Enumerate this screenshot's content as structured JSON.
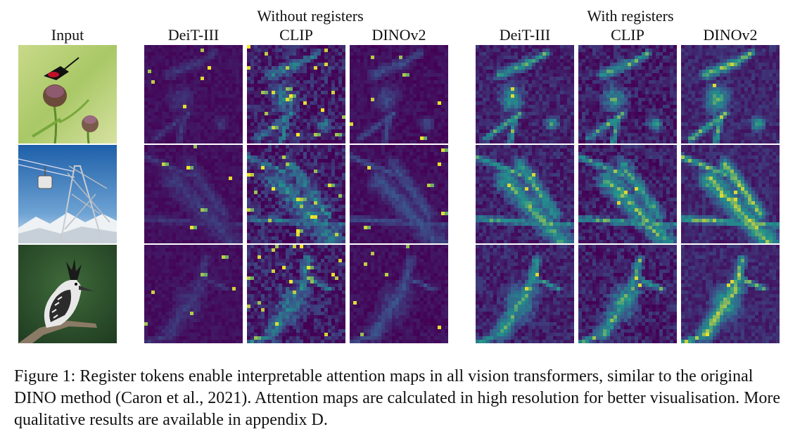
{
  "header": {
    "group_without": "Without registers",
    "group_with": "With registers",
    "input_label": "Input",
    "columns_without": [
      "DeiT-III",
      "CLIP",
      "DINOv2"
    ],
    "columns_with": [
      "DeiT-III",
      "CLIP",
      "DINOv2"
    ]
  },
  "rows": [
    {
      "subject": "insect-on-thistle"
    },
    {
      "subject": "cable-car-pylon"
    },
    {
      "subject": "kingfisher-bird"
    }
  ],
  "colormap": {
    "low": "#440154",
    "mid": "#21918c",
    "high": "#fde725"
  },
  "caption": {
    "text_start": "Figure 1: Register tokens enable  interpretable attention maps in all vision transformers, similar to the original DINO method (",
    "cite_author": "Caron",
    "text_mid": " et al., ",
    "cite_year": "2021",
    "text_end": "). Attention maps are calculated in high resolution for better visualisation. More qualitative results are available in appendix D."
  }
}
